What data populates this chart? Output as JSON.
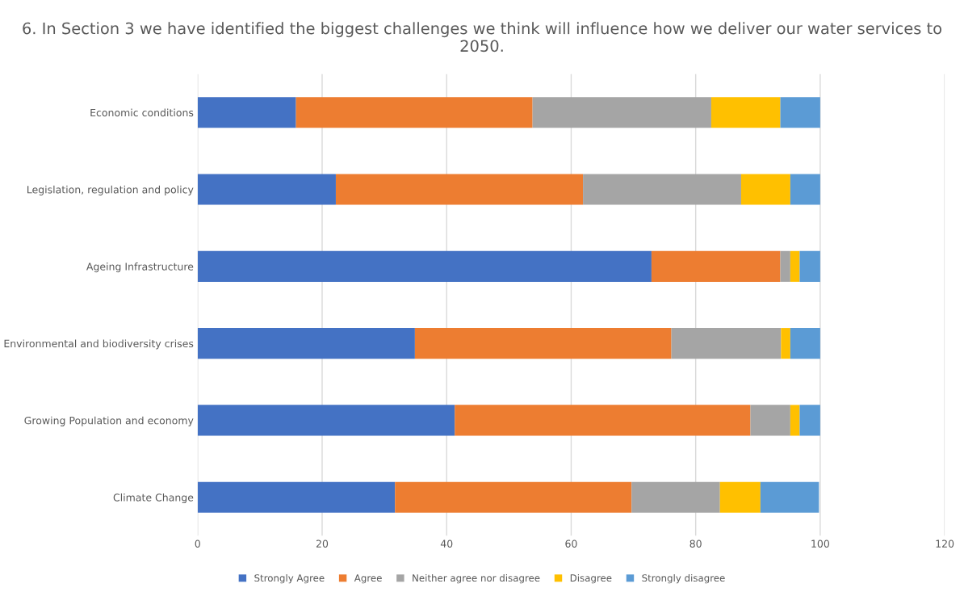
{
  "chart_data": {
    "type": "bar",
    "orientation": "horizontal",
    "stacked": true,
    "title": "6. In Section 3 we have identified the biggest challenges we think will influence how we deliver our water services to 2050.",
    "categories": [
      "Economic conditions",
      "Legislation, regulation and policy",
      "Ageing Infrastructure",
      "Environmental and biodiversity crises",
      "Growing Population and economy",
      "Climate Change"
    ],
    "series": [
      {
        "name": "Strongly Agree",
        "color": "#4472c4",
        "values": [
          15.8,
          22.2,
          72.9,
          34.9,
          41.3,
          31.7
        ]
      },
      {
        "name": "Agree",
        "color": "#ed7d31",
        "values": [
          38.0,
          39.7,
          20.7,
          41.2,
          47.5,
          38.0
        ]
      },
      {
        "name": "Neither agree nor disagree",
        "color": "#a5a5a5",
        "values": [
          28.7,
          25.4,
          1.6,
          17.6,
          6.4,
          14.2
        ]
      },
      {
        "name": "Disagree",
        "color": "#ffc000",
        "values": [
          11.1,
          7.9,
          1.5,
          1.5,
          1.5,
          6.5
        ]
      },
      {
        "name": "Strongly disagree",
        "color": "#5b9bd5",
        "values": [
          6.4,
          4.8,
          3.3,
          4.8,
          3.3,
          9.4
        ]
      }
    ],
    "xlim": [
      0,
      120
    ],
    "xticks": [
      0,
      20,
      40,
      60,
      80,
      100,
      120
    ],
    "grid": "x",
    "legend": "bottom"
  }
}
